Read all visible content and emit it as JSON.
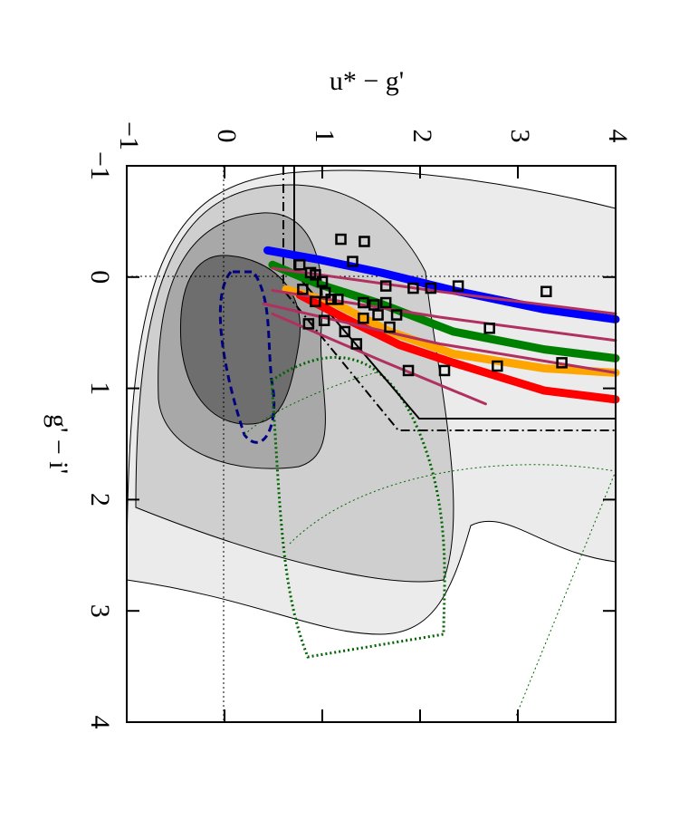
{
  "chart_data": {
    "type": "scatter",
    "x_label": "u* − g'",
    "y_label": "g' − i'",
    "xlim": [
      -1,
      4
    ],
    "ylim": [
      -1,
      4
    ],
    "y_inverted": true,
    "xticks": [
      {
        "value": -1,
        "label": "−1"
      },
      0,
      1,
      2,
      3,
      4
    ],
    "yticks": [
      {
        "value": -1,
        "label": "−1"
      },
      0,
      1,
      2,
      3,
      4
    ],
    "series": [
      {
        "color": "#0000ff",
        "style": "line",
        "x": [
          0.44,
          0.95,
          1.6,
          2.34,
          3.27,
          4.0
        ],
        "values": [
          -0.24,
          -0.16,
          -0.04,
          0.12,
          0.29,
          0.38
        ]
      },
      {
        "color": "#008000",
        "style": "line",
        "x": [
          0.49,
          0.95,
          1.6,
          2.34,
          3.27,
          4.0
        ],
        "values": [
          -0.11,
          0.06,
          0.24,
          0.49,
          0.65,
          0.73
        ]
      },
      {
        "color": "#ffa500",
        "style": "line",
        "x": [
          0.63,
          1.14,
          1.69,
          2.34,
          3.27,
          4.0
        ],
        "values": [
          0.11,
          0.24,
          0.49,
          0.69,
          0.82,
          0.86
        ]
      },
      {
        "color": "#ff0000",
        "style": "line",
        "x": [
          0.77,
          1.23,
          1.79,
          2.34,
          3.27,
          4.0
        ],
        "values": [
          0.16,
          0.37,
          0.61,
          0.77,
          1.02,
          1.1
        ]
      },
      {
        "color": "#b03060",
        "style": "thin",
        "x": [
          0.49,
          2.2,
          4.0
        ],
        "values": [
          -0.08,
          0.13,
          0.33
        ]
      },
      {
        "color": "#b03060",
        "style": "thin",
        "x": [
          0.49,
          2.2,
          4.0
        ],
        "values": [
          0.12,
          0.36,
          0.57
        ]
      },
      {
        "color": "#b03060",
        "style": "thin",
        "x": [
          0.4,
          2.2,
          4.0
        ],
        "values": [
          0.24,
          0.6,
          0.86
        ]
      },
      {
        "color": "#b03060",
        "style": "thin",
        "x": [
          0.49,
          1.6,
          2.67
        ],
        "values": [
          0.33,
          0.75,
          1.14
        ]
      },
      {
        "color": "#000000",
        "style": "square",
        "x": [
          1.19,
          1.43,
          1.31,
          0.77,
          0.88,
          0.93,
          1.0,
          0.8,
          1.03,
          1.09,
          0.93,
          1.16,
          1.42,
          1.53,
          1.65,
          1.76,
          1.57,
          1.42,
          1.69,
          1.23,
          1.35,
          1.88,
          2.25,
          2.79,
          3.29,
          2.71,
          1.65,
          1.93,
          2.11,
          2.39,
          3.45,
          1.02,
          0.86
        ],
        "values": [
          -0.34,
          -0.32,
          -0.14,
          -0.11,
          -0.04,
          -0.02,
          0.04,
          0.11,
          0.14,
          0.2,
          0.22,
          0.2,
          0.23,
          0.25,
          0.23,
          0.34,
          0.34,
          0.37,
          0.45,
          0.49,
          0.6,
          0.84,
          0.84,
          0.8,
          0.13,
          0.46,
          0.08,
          0.1,
          0.1,
          0.08,
          0.77,
          0.39,
          0.42
        ]
      }
    ]
  }
}
